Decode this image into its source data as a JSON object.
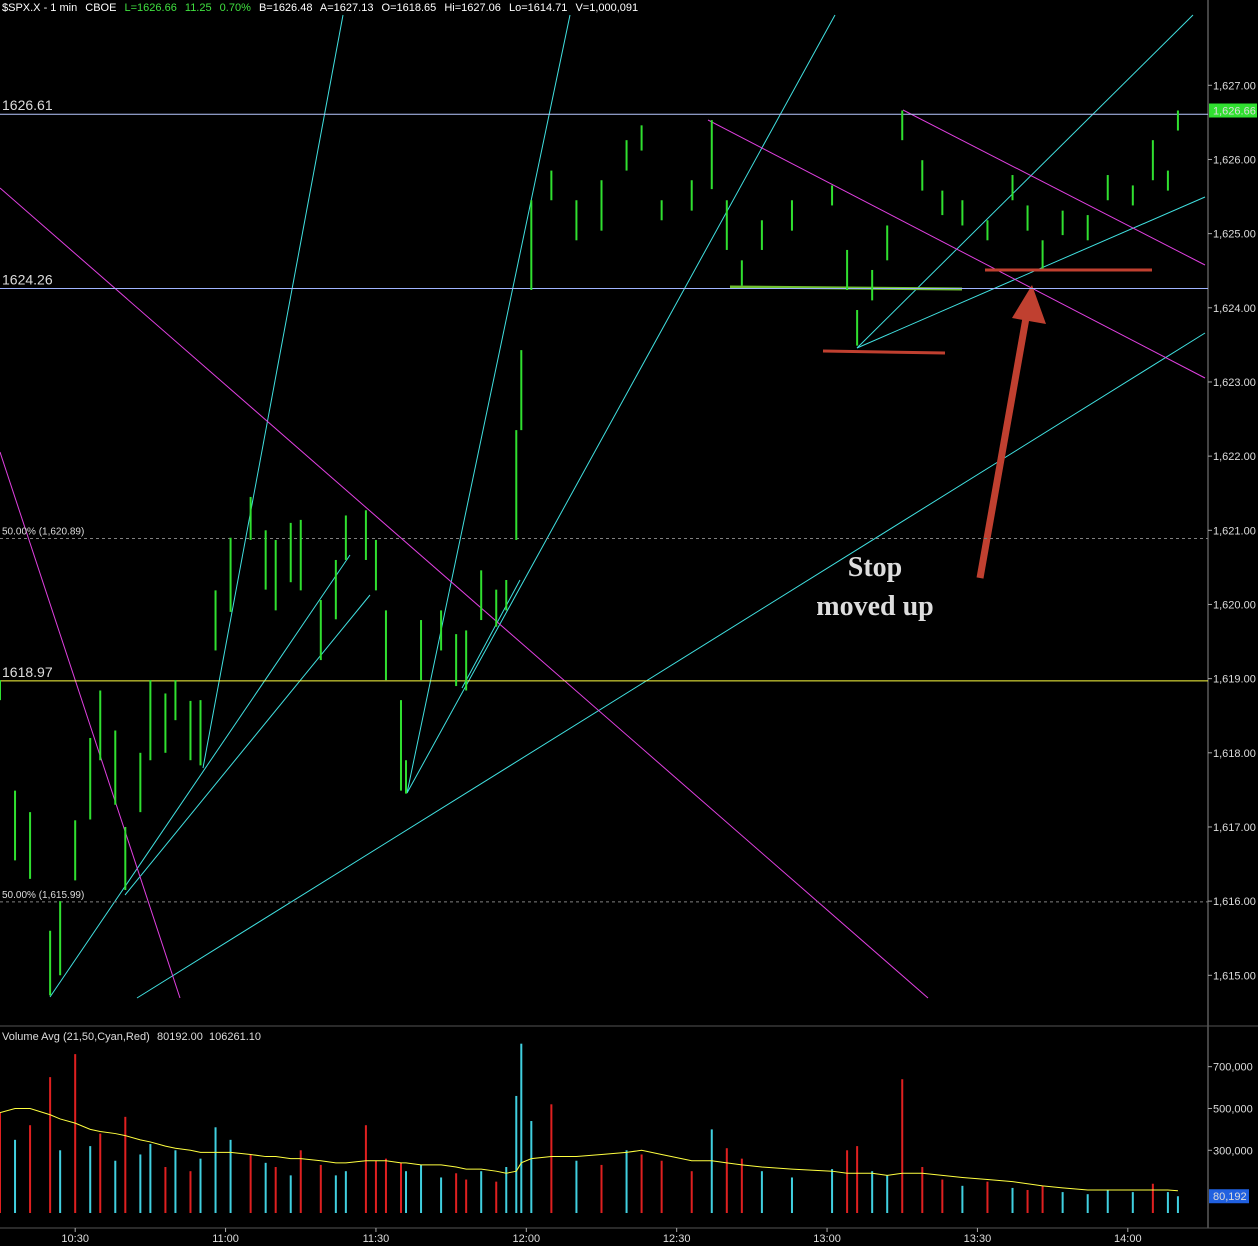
{
  "header": {
    "symbol": "$SPX.X - 1 min",
    "exchange": "CBOE",
    "last": "L=1626.66",
    "change": "11.25",
    "change_pct": "0.70%",
    "bid": "B=1626.48",
    "ask": "A=1627.13",
    "open": "O=1618.65",
    "high": "Hi=1627.06",
    "low": "Lo=1614.71",
    "volume": "V=1,000,091"
  },
  "chart_data": [
    {
      "type": "range-bar",
      "color": "#30e030",
      "x": [
        "10:15",
        "10:18",
        "10:21",
        "10:25",
        "10:27",
        "10:30",
        "10:33",
        "10:35",
        "10:38",
        "10:40",
        "10:43",
        "10:45",
        "10:48",
        "10:50",
        "10:53",
        "10:55",
        "10:58",
        "11:01",
        "11:05",
        "11:08",
        "11:10",
        "11:13",
        "11:15",
        "11:19",
        "11:22",
        "11:24",
        "11:28",
        "11:30",
        "11:32",
        "11:35",
        "11:36",
        "11:39",
        "11:43",
        "11:46",
        "11:48",
        "11:51",
        "11:54",
        "11:56",
        "11:58",
        "11:59",
        "12:01",
        "12:05",
        "12:10",
        "12:15",
        "12:20",
        "12:23",
        "12:27",
        "12:33",
        "12:37",
        "12:40",
        "12:43",
        "12:47",
        "12:53",
        "13:01",
        "13:04",
        "13:06",
        "13:09",
        "13:12",
        "13:15",
        "13:19",
        "13:23",
        "13:27",
        "13:32",
        "13:37",
        "13:40",
        "13:43",
        "13:47",
        "13:52",
        "13:56",
        "14:01",
        "14:05",
        "14:08",
        "14:10"
      ],
      "highs": [
        1618.98,
        1617.49,
        1617.2,
        1615.6,
        1616.0,
        1617.09,
        1618.2,
        1618.84,
        1618.3,
        1617.0,
        1618.0,
        1618.98,
        1618.8,
        1618.98,
        1618.7,
        1618.71,
        1620.19,
        1620.9,
        1621.45,
        1621.0,
        1620.87,
        1621.1,
        1621.14,
        1620.06,
        1620.6,
        1621.2,
        1621.27,
        1620.87,
        1619.92,
        1618.71,
        1617.9,
        1619.79,
        1619.92,
        1619.6,
        1619.65,
        1620.46,
        1620.2,
        1620.33,
        1622.35,
        1623.43,
        1625.45,
        1625.85,
        1625.45,
        1625.72,
        1626.26,
        1626.46,
        1625.45,
        1625.72,
        1626.53,
        1625.45,
        1624.64,
        1625.18,
        1625.45,
        1625.65,
        1624.78,
        1623.97,
        1624.51,
        1625.11,
        1626.66,
        1625.99,
        1625.58,
        1625.45,
        1625.18,
        1625.79,
        1625.38,
        1624.91,
        1625.31,
        1625.25,
        1625.79,
        1625.65,
        1626.26,
        1625.85,
        1626.66
      ],
      "lows": [
        1618.71,
        1616.55,
        1616.3,
        1614.73,
        1615.0,
        1616.28,
        1617.1,
        1617.9,
        1617.3,
        1616.15,
        1617.2,
        1617.9,
        1618.0,
        1618.44,
        1617.9,
        1617.83,
        1619.38,
        1619.9,
        1620.87,
        1620.2,
        1619.92,
        1620.3,
        1620.19,
        1619.25,
        1619.8,
        1620.6,
        1620.6,
        1620.19,
        1618.98,
        1617.49,
        1617.45,
        1618.98,
        1619.38,
        1618.9,
        1618.84,
        1619.79,
        1619.7,
        1619.92,
        1620.87,
        1622.35,
        1624.24,
        1625.45,
        1624.91,
        1625.04,
        1625.85,
        1626.12,
        1625.18,
        1625.31,
        1625.6,
        1624.78,
        1624.3,
        1624.78,
        1625.04,
        1625.38,
        1624.24,
        1623.49,
        1624.1,
        1624.64,
        1626.26,
        1625.58,
        1625.25,
        1625.11,
        1624.91,
        1625.45,
        1625.04,
        1624.53,
        1624.98,
        1624.91,
        1625.45,
        1625.38,
        1625.72,
        1625.58,
        1626.39
      ],
      "xlim": [
        "10:15",
        "14:16"
      ],
      "xticks": [
        "10:30",
        "11:00",
        "11:30",
        "12:00",
        "12:30",
        "13:00",
        "13:30",
        "14:00"
      ],
      "ylim": [
        1614.33,
        1628.15
      ],
      "yticks": [
        {
          "value": 1615,
          "label": "1,615.00"
        },
        {
          "value": 1616,
          "label": "1,616.00"
        },
        {
          "value": 1617,
          "label": "1,617.00"
        },
        {
          "value": 1618,
          "label": "1,618.00"
        },
        {
          "value": 1619,
          "label": "1,619.00"
        },
        {
          "value": 1620,
          "label": "1,620.00"
        },
        {
          "value": 1621,
          "label": "1,621.00"
        },
        {
          "value": 1622,
          "label": "1,622.00"
        },
        {
          "value": 1623,
          "label": "1,623.00"
        },
        {
          "value": 1624,
          "label": "1,624.00"
        },
        {
          "value": 1625,
          "label": "1,625.00"
        },
        {
          "value": 1626,
          "label": "1,626.00"
        },
        {
          "value": 1627,
          "label": "1,627.00"
        }
      ],
      "hlines": [
        {
          "value": 1626.61,
          "label": "1626.61",
          "color": "#b8c8ff",
          "dashed": false
        },
        {
          "value": 1624.26,
          "label": "1624.26",
          "color": "#a0b4ff",
          "dashed": false
        },
        {
          "value": 1618.97,
          "label": "1618.97",
          "color": "#ffff40",
          "dashed": false
        },
        {
          "value": 1620.89,
          "label": "50.00% (1,620.89)",
          "color": "#808080",
          "dashed": true
        },
        {
          "value": 1615.99,
          "label": "50.00% (1,615.99)",
          "color": "#808080",
          "dashed": true
        }
      ],
      "last_label": {
        "value": 1626.66,
        "label": "1,626.66"
      },
      "annotation": [
        "Stop",
        "moved up"
      ]
    },
    {
      "type": "volume",
      "title": "Volume Avg (21,50,Cyan,Red)",
      "legend_values": [
        "80192.00",
        "106261.10"
      ],
      "legend_colors": [
        "#40d0e0",
        "#ffff40"
      ],
      "x": [
        "10:15",
        "10:18",
        "10:21",
        "10:25",
        "10:27",
        "10:30",
        "10:33",
        "10:35",
        "10:38",
        "10:40",
        "10:43",
        "10:45",
        "10:48",
        "10:50",
        "10:53",
        "10:55",
        "10:58",
        "11:01",
        "11:05",
        "11:08",
        "11:10",
        "11:13",
        "11:15",
        "11:19",
        "11:22",
        "11:24",
        "11:28",
        "11:30",
        "11:32",
        "11:35",
        "11:36",
        "11:39",
        "11:43",
        "11:46",
        "11:48",
        "11:51",
        "11:54",
        "11:56",
        "11:58",
        "11:59",
        "12:01",
        "12:05",
        "12:10",
        "12:15",
        "12:20",
        "12:23",
        "12:27",
        "12:33",
        "12:37",
        "12:40",
        "12:43",
        "12:47",
        "12:53",
        "13:01",
        "13:04",
        "13:06",
        "13:09",
        "13:12",
        "13:15",
        "13:19",
        "13:23",
        "13:27",
        "13:32",
        "13:37",
        "13:40",
        "13:43",
        "13:47",
        "13:52",
        "13:56",
        "14:01",
        "14:05",
        "14:08",
        "14:10"
      ],
      "values": [
        480000,
        350000,
        420000,
        650000,
        300000,
        760000,
        320000,
        380000,
        250000,
        460000,
        280000,
        330000,
        220000,
        300000,
        200000,
        260000,
        410000,
        350000,
        280000,
        240000,
        220000,
        180000,
        300000,
        230000,
        180000,
        200000,
        420000,
        250000,
        260000,
        240000,
        200000,
        230000,
        170000,
        190000,
        160000,
        200000,
        150000,
        220000,
        560000,
        810000,
        440000,
        520000,
        250000,
        230000,
        300000,
        280000,
        250000,
        200000,
        400000,
        310000,
        260000,
        200000,
        170000,
        210000,
        300000,
        320000,
        200000,
        180000,
        640000,
        220000,
        160000,
        130000,
        150000,
        120000,
        110000,
        130000,
        100000,
        90000,
        110000,
        100000,
        140000,
        100000,
        80192
      ],
      "colors": [
        "#e02020",
        "#40d0e0",
        "#e02020",
        "#e02020",
        "#40d0e0",
        "#e02020",
        "#40d0e0",
        "#e02020",
        "#40d0e0",
        "#e02020",
        "#40d0e0",
        "#40d0e0",
        "#e02020",
        "#40d0e0",
        "#e02020",
        "#40d0e0",
        "#40d0e0",
        "#40d0e0",
        "#e02020",
        "#40d0e0",
        "#e02020",
        "#40d0e0",
        "#e02020",
        "#e02020",
        "#40d0e0",
        "#40d0e0",
        "#e02020",
        "#e02020",
        "#e02020",
        "#e02020",
        "#40d0e0",
        "#40d0e0",
        "#40d0e0",
        "#e02020",
        "#e02020",
        "#40d0e0",
        "#e02020",
        "#40d0e0",
        "#40d0e0",
        "#40d0e0",
        "#40d0e0",
        "#e02020",
        "#40d0e0",
        "#e02020",
        "#40d0e0",
        "#e02020",
        "#e02020",
        "#e02020",
        "#40d0e0",
        "#e02020",
        "#e02020",
        "#40d0e0",
        "#40d0e0",
        "#40d0e0",
        "#e02020",
        "#e02020",
        "#40d0e0",
        "#40d0e0",
        "#e02020",
        "#e02020",
        "#e02020",
        "#40d0e0",
        "#e02020",
        "#40d0e0",
        "#e02020",
        "#e02020",
        "#40d0e0",
        "#40d0e0",
        "#40d0e0",
        "#40d0e0",
        "#e02020",
        "#40d0e0",
        "#40d0e0"
      ],
      "avg": [
        480000,
        500000,
        500000,
        470000,
        450000,
        430000,
        400000,
        390000,
        380000,
        370000,
        350000,
        340000,
        320000,
        310000,
        300000,
        290000,
        290000,
        290000,
        280000,
        270000,
        270000,
        260000,
        260000,
        250000,
        240000,
        240000,
        250000,
        250000,
        250000,
        240000,
        240000,
        230000,
        230000,
        220000,
        210000,
        210000,
        200000,
        190000,
        200000,
        240000,
        260000,
        270000,
        270000,
        280000,
        290000,
        300000,
        280000,
        250000,
        250000,
        240000,
        230000,
        220000,
        210000,
        200000,
        190000,
        190000,
        190000,
        180000,
        190000,
        190000,
        180000,
        170000,
        160000,
        150000,
        140000,
        130000,
        120000,
        110000,
        110000,
        110000,
        110000,
        110000,
        106261.1
      ],
      "avg_color": "#ffff40",
      "xlim": [
        "10:15",
        "14:16"
      ],
      "xticks": [
        "10:30",
        "11:00",
        "11:30",
        "12:00",
        "12:30",
        "13:00",
        "13:30",
        "14:00"
      ],
      "ylim": [
        0,
        885000
      ],
      "yticks": [
        {
          "value": 300000,
          "label": "300,000"
        },
        {
          "value": 500000,
          "label": "500,000"
        },
        {
          "value": 700000,
          "label": "700,000"
        }
      ],
      "last_label": {
        "value": 80192,
        "label": "80,192"
      }
    }
  ]
}
